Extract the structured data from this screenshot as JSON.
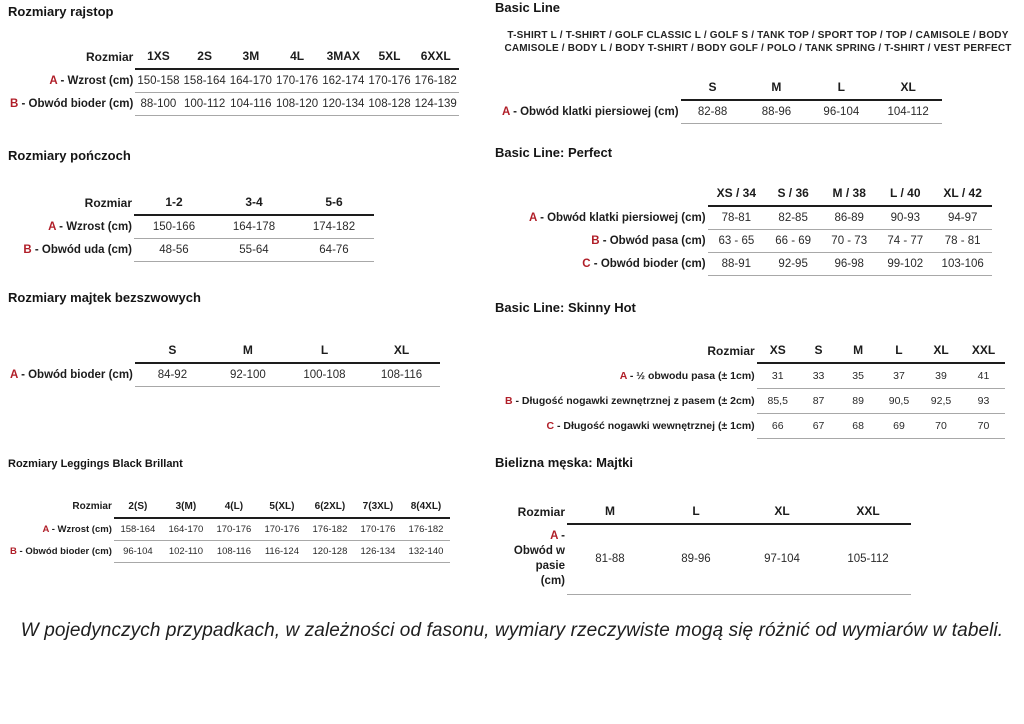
{
  "accent_color": "#b01e28",
  "footnote": "W pojedynczych przypadkach, w zależności od fasonu, wymiary rzeczywiste mogą się różnić od wymiarów w tabeli.",
  "left": {
    "sections": [
      {
        "title": "Rozmiary rajstop",
        "table": {
          "corner": "Rozmiar",
          "columns": [
            "1XS",
            "2S",
            "3M",
            "4L",
            "3MAX",
            "5XL",
            "6XXL"
          ],
          "rows": [
            {
              "letter": "A",
              "label": "- Wzrost (cm)",
              "values": [
                "150-158",
                "158-164",
                "164-170",
                "170-176",
                "162-174",
                "170-176",
                "176-182"
              ]
            },
            {
              "letter": "B",
              "label": "- Obwód bioder (cm)",
              "values": [
                "88-100",
                "100-112",
                "104-116",
                "108-120",
                "120-134",
                "108-128",
                "124-139"
              ]
            }
          ]
        }
      },
      {
        "title": "Rozmiary pończoch",
        "table": {
          "corner": "Rozmiar",
          "columns": [
            "1-2",
            "3-4",
            "5-6"
          ],
          "rows": [
            {
              "letter": "A",
              "label": "- Wzrost (cm)",
              "values": [
                "150-166",
                "164-178",
                "174-182"
              ]
            },
            {
              "letter": "B",
              "label": "- Obwód uda (cm)",
              "values": [
                "48-56",
                "55-64",
                "64-76"
              ]
            }
          ]
        }
      },
      {
        "title": "Rozmiary majtek bezszwowych",
        "table": {
          "corner": "",
          "columns": [
            "S",
            "M",
            "L",
            "XL"
          ],
          "rows": [
            {
              "letter": "A",
              "label": "- Obwód bioder (cm)",
              "values": [
                "84-92",
                "92-100",
                "100-108",
                "108-116"
              ]
            }
          ]
        }
      },
      {
        "title": "Rozmiary Leggings Black Brillant",
        "table": {
          "corner": "Rozmiar",
          "columns": [
            "2(S)",
            "3(M)",
            "4(L)",
            "5(XL)",
            "6(2XL)",
            "7(3XL)",
            "8(4XL)"
          ],
          "rows": [
            {
              "letter": "A",
              "label": "- Wzrost (cm)",
              "values": [
                "158-164",
                "164-170",
                "170-176",
                "170-176",
                "176-182",
                "170-176",
                "176-182"
              ]
            },
            {
              "letter": "B",
              "label": "- Obwód bioder (cm)",
              "values": [
                "96-104",
                "102-110",
                "108-116",
                "116-124",
                "120-128",
                "126-134",
                "132-140"
              ]
            }
          ]
        }
      }
    ]
  },
  "right": {
    "sections": [
      {
        "title": "Basic Line",
        "intro": "T-SHIRT L / T-SHIRT / GOLF CLASSIC L / GOLF S / TANK TOP / SPORT TOP / TOP / CAMISOLE / BODY CAMISOLE / BODY L / BODY T-SHIRT / BODY GOLF / POLO / TANK SPRING / T-SHIRT / VEST PERFECT",
        "table": {
          "corner": "",
          "columns": [
            "S",
            "M",
            "L",
            "XL"
          ],
          "rows": [
            {
              "letter": "A",
              "label": "- Obwód klatki piersiowej (cm)",
              "values": [
                "82-88",
                "88-96",
                "96-104",
                "104-112"
              ]
            }
          ]
        }
      },
      {
        "title": "Basic Line: Perfect",
        "table": {
          "corner": "",
          "columns": [
            "XS / 34",
            "S / 36",
            "M / 38",
            "L / 40",
            "XL / 42"
          ],
          "rows": [
            {
              "letter": "A",
              "label": "- Obwód klatki piersiowej (cm)",
              "values": [
                "78-81",
                "82-85",
                "86-89",
                "90-93",
                "94-97"
              ]
            },
            {
              "letter": "B",
              "label": "- Obwód pasa (cm)",
              "values": [
                "63 - 65",
                "66 - 69",
                "70 - 73",
                "74 - 77",
                "78 - 81"
              ]
            },
            {
              "letter": "C",
              "label": "- Obwód bioder (cm)",
              "values": [
                "88-91",
                "92-95",
                "96-98",
                "99-102",
                "103-106"
              ]
            }
          ]
        }
      },
      {
        "title": "Basic Line: Skinny Hot",
        "table": {
          "corner": "Rozmiar",
          "columns": [
            "XS",
            "S",
            "M",
            "L",
            "XL",
            "XXL"
          ],
          "rows": [
            {
              "letter": "A",
              "label": "- ½ obwodu pasa (± 1cm)",
              "values": [
                "31",
                "33",
                "35",
                "37",
                "39",
                "41"
              ]
            },
            {
              "letter": "B",
              "label": "- Długość nogawki zewnętrznej z pasem (± 2cm)",
              "values": [
                "85,5",
                "87",
                "89",
                "90,5",
                "92,5",
                "93"
              ]
            },
            {
              "letter": "C",
              "label": "- Długość nogawki wewnętrznej (± 1cm)",
              "values": [
                "66",
                "67",
                "68",
                "69",
                "70",
                "70"
              ]
            }
          ]
        }
      },
      {
        "title": "Bielizna męska: Majtki",
        "table": {
          "corner": "Rozmiar",
          "columns": [
            "M",
            "L",
            "XL",
            "XXL"
          ],
          "rows": [
            {
              "letter": "A",
              "label": "- Obwód w pasie (cm)",
              "values": [
                "81-88",
                "89-96",
                "97-104",
                "105-112"
              ]
            }
          ]
        }
      }
    ]
  }
}
